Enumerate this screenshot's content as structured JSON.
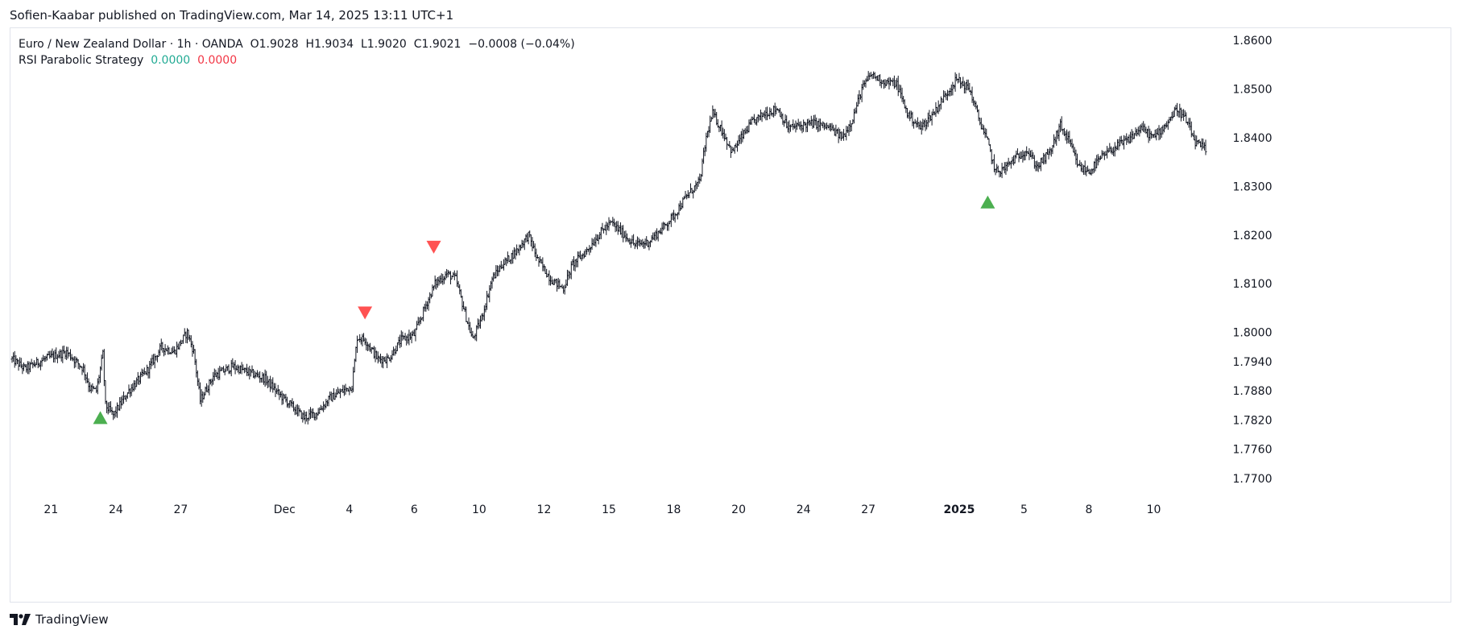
{
  "header": {
    "published_line": "Sofien-Kaabar published on TradingView.com, Mar 14, 2025 13:11 UTC+1"
  },
  "legend": {
    "symbol_line": {
      "symbol": "Euro / New Zealand Dollar · 1h · OANDA",
      "open_label": "O",
      "open": "1.9028",
      "high_label": "H",
      "high": "1.9034",
      "low_label": "L",
      "low": "1.9020",
      "close_label": "C",
      "close": "1.9021",
      "change": "−0.0008 (−0.04%)"
    },
    "indicator_line": {
      "name": "RSI Parabolic Strategy",
      "value1": "0.0000",
      "value2": "0.0000"
    }
  },
  "brand": {
    "name": "TradingView",
    "logo_icon": "tradingview-logo-icon"
  },
  "colors": {
    "bars": "#131722",
    "buy_signal": "#4caf50",
    "sell_signal": "#ff5252",
    "indicator_value1": "#22ab94",
    "indicator_value2": "#f23645",
    "frame_border": "#e0e3eb"
  },
  "chart_data": {
    "type": "ohlc",
    "title": "Euro / New Zealand Dollar · 1h · OANDA",
    "grid": false,
    "y_axis_position": "right",
    "ylim": [
      1.7665,
      1.8625
    ],
    "y_ticks": [
      "1.8600",
      "1.8500",
      "1.8400",
      "1.8300",
      "1.8200",
      "1.8100",
      "1.8000",
      "1.7940",
      "1.7880",
      "1.7820",
      "1.7760",
      "1.7700"
    ],
    "y_tick_values": [
      1.86,
      1.85,
      1.84,
      1.83,
      1.82,
      1.81,
      1.8,
      1.794,
      1.788,
      1.782,
      1.776,
      1.77
    ],
    "x_ticks": [
      {
        "label": "21",
        "bold": false
      },
      {
        "label": "24",
        "bold": false
      },
      {
        "label": "27",
        "bold": false
      },
      {
        "label": "Dec",
        "bold": false
      },
      {
        "label": "4",
        "bold": false
      },
      {
        "label": "6",
        "bold": false
      },
      {
        "label": "10",
        "bold": false
      },
      {
        "label": "12",
        "bold": false
      },
      {
        "label": "15",
        "bold": false
      },
      {
        "label": "18",
        "bold": false
      },
      {
        "label": "20",
        "bold": false
      },
      {
        "label": "24",
        "bold": false
      },
      {
        "label": "27",
        "bold": false
      },
      {
        "label": "2025",
        "bold": true
      },
      {
        "label": "5",
        "bold": false
      },
      {
        "label": "8",
        "bold": false
      },
      {
        "label": "10",
        "bold": false
      }
    ],
    "x_tick_bar_index": [
      30,
      80,
      130,
      210,
      260,
      310,
      360,
      410,
      460,
      510,
      560,
      610,
      660,
      730,
      780,
      830,
      880
    ],
    "price_path": [
      [
        0,
        1.7945
      ],
      [
        10,
        1.7925
      ],
      [
        25,
        1.7945
      ],
      [
        42,
        1.796
      ],
      [
        55,
        1.7925
      ],
      [
        60,
        1.7885
      ],
      [
        65,
        1.788
      ],
      [
        70,
        1.7955
      ],
      [
        72,
        1.785
      ],
      [
        78,
        1.783
      ],
      [
        90,
        1.788
      ],
      [
        105,
        1.7925
      ],
      [
        115,
        1.797
      ],
      [
        125,
        1.796
      ],
      [
        135,
        1.8
      ],
      [
        140,
        1.796
      ],
      [
        145,
        1.786
      ],
      [
        155,
        1.791
      ],
      [
        170,
        1.793
      ],
      [
        185,
        1.7915
      ],
      [
        195,
        1.7905
      ],
      [
        205,
        1.7875
      ],
      [
        215,
        1.785
      ],
      [
        225,
        1.7825
      ],
      [
        235,
        1.7835
      ],
      [
        245,
        1.7865
      ],
      [
        255,
        1.788
      ],
      [
        262,
        1.789
      ],
      [
        266,
        1.799
      ],
      [
        272,
        1.7985
      ],
      [
        282,
        1.7945
      ],
      [
        290,
        1.7945
      ],
      [
        300,
        1.7985
      ],
      [
        310,
        1.7995
      ],
      [
        318,
        1.805
      ],
      [
        326,
        1.81
      ],
      [
        335,
        1.812
      ],
      [
        342,
        1.811
      ],
      [
        350,
        1.803
      ],
      [
        355,
        1.7985
      ],
      [
        362,
        1.803
      ],
      [
        370,
        1.811
      ],
      [
        378,
        1.814
      ],
      [
        388,
        1.8165
      ],
      [
        398,
        1.82
      ],
      [
        405,
        1.815
      ],
      [
        415,
        1.811
      ],
      [
        425,
        1.809
      ],
      [
        432,
        1.814
      ],
      [
        442,
        1.8165
      ],
      [
        455,
        1.821
      ],
      [
        462,
        1.8225
      ],
      [
        472,
        1.82
      ],
      [
        480,
        1.818
      ],
      [
        490,
        1.8185
      ],
      [
        500,
        1.821
      ],
      [
        510,
        1.824
      ],
      [
        520,
        1.828
      ],
      [
        530,
        1.831
      ],
      [
        535,
        1.84
      ],
      [
        540,
        1.845
      ],
      [
        548,
        1.841
      ],
      [
        555,
        1.837
      ],
      [
        562,
        1.84
      ],
      [
        570,
        1.843
      ],
      [
        580,
        1.845
      ],
      [
        590,
        1.846
      ],
      [
        598,
        1.842
      ],
      [
        608,
        1.8425
      ],
      [
        618,
        1.843
      ],
      [
        630,
        1.842
      ],
      [
        640,
        1.84
      ],
      [
        648,
        1.844
      ],
      [
        655,
        1.85
      ],
      [
        662,
        1.853
      ],
      [
        672,
        1.8515
      ],
      [
        682,
        1.851
      ],
      [
        690,
        1.845
      ],
      [
        700,
        1.842
      ],
      [
        710,
        1.845
      ],
      [
        720,
        1.849
      ],
      [
        728,
        1.852
      ],
      [
        738,
        1.85
      ],
      [
        745,
        1.844
      ],
      [
        752,
        1.839
      ],
      [
        758,
        1.833
      ],
      [
        764,
        1.8335
      ],
      [
        772,
        1.8355
      ],
      [
        782,
        1.8375
      ],
      [
        790,
        1.834
      ],
      [
        800,
        1.837
      ],
      [
        808,
        1.8425
      ],
      [
        815,
        1.839
      ],
      [
        822,
        1.834
      ],
      [
        830,
        1.833
      ],
      [
        840,
        1.836
      ],
      [
        850,
        1.838
      ],
      [
        860,
        1.8395
      ],
      [
        870,
        1.842
      ],
      [
        880,
        1.84
      ],
      [
        890,
        1.843
      ],
      [
        898,
        1.846
      ],
      [
        905,
        1.8435
      ],
      [
        912,
        1.839
      ],
      [
        920,
        1.8375
      ]
    ],
    "buy_signals_bar_index": [
      68,
      752
    ],
    "buy_signals_price": [
      1.7825,
      1.8268
    ],
    "sell_signals_bar_index": [
      272,
      325
    ],
    "sell_signals_price": [
      1.804,
      1.8175
    ],
    "total_bars": 921
  }
}
